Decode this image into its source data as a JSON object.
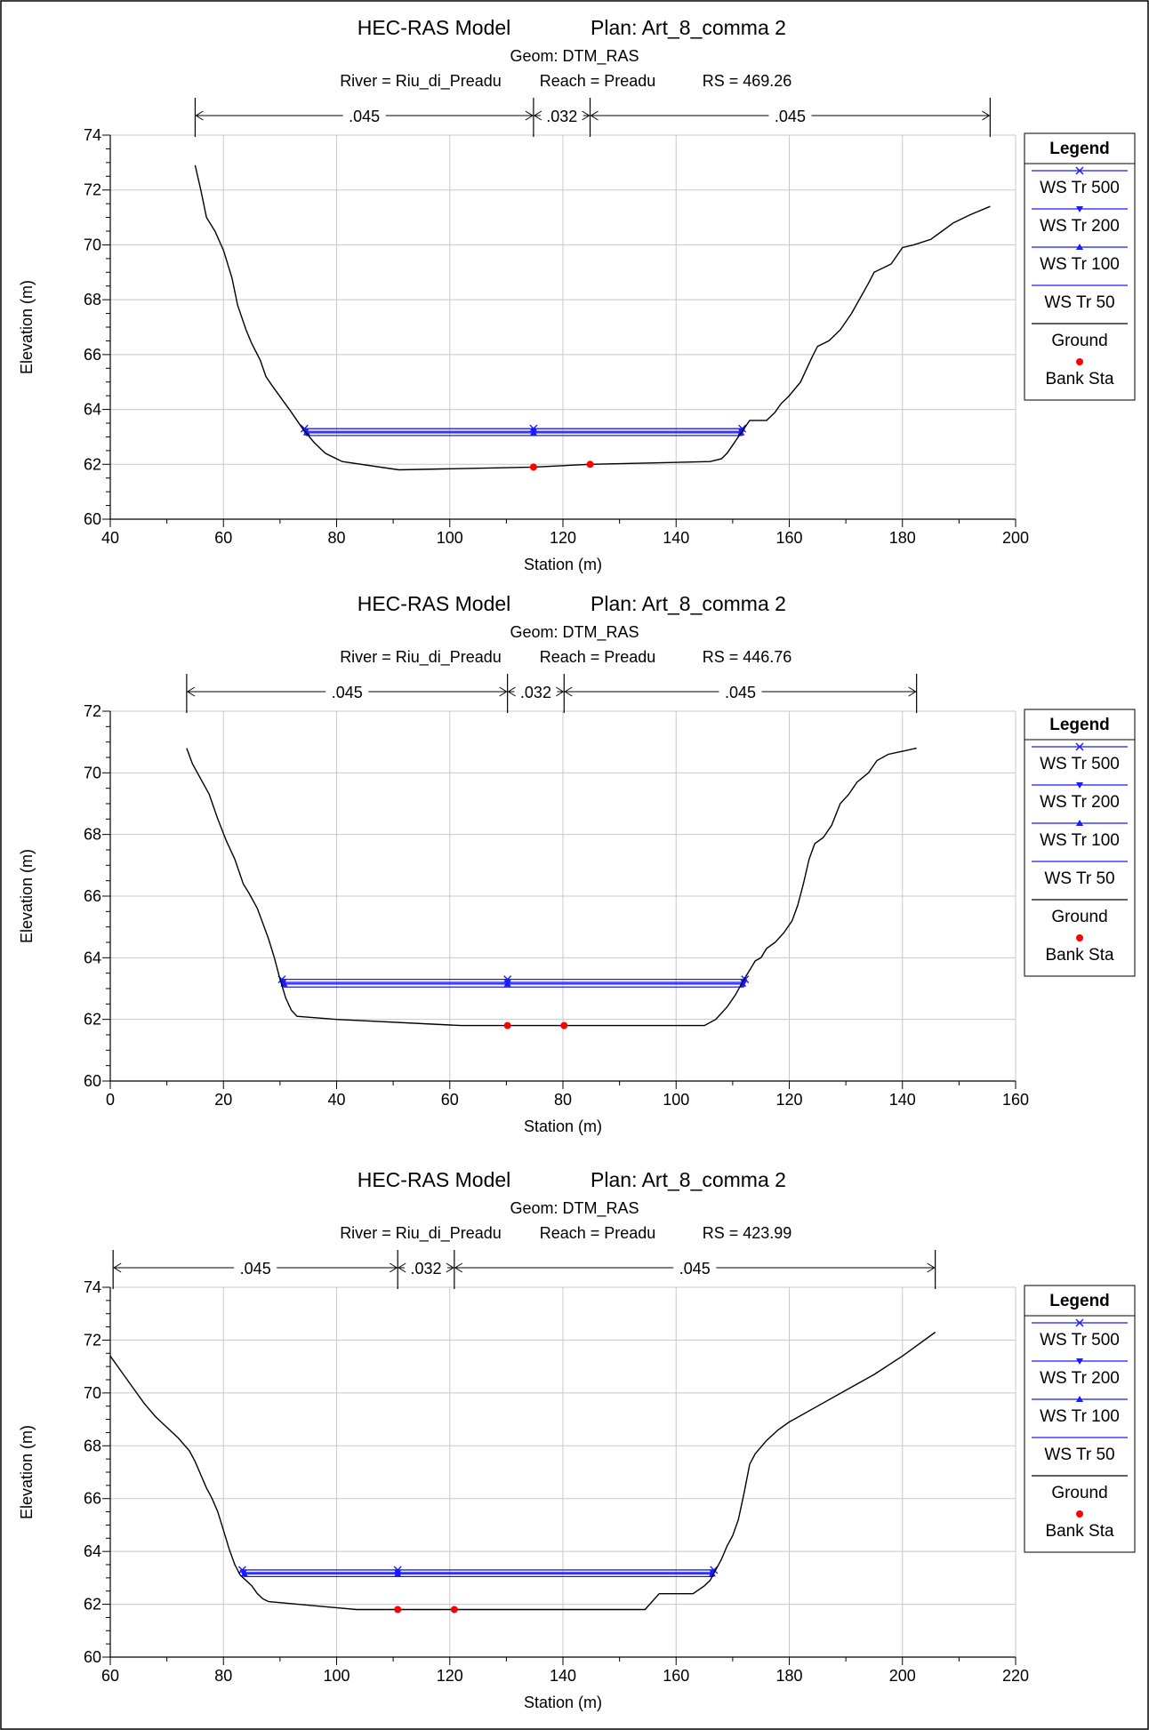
{
  "chart_data": [
    {
      "type": "line",
      "title": "HEC-RAS Model",
      "plan": "Plan: Art_8_comma 2",
      "geom": "Geom: DTM_RAS",
      "river": "River = Riu_di_Preadu",
      "reach": "Reach = Preadu",
      "rs": "RS = 469.26",
      "xlabel": "Station (m)",
      "ylabel": "Elevation (m)",
      "xlim": [
        40,
        200
      ],
      "ylim": [
        60,
        74
      ],
      "xticks": [
        40,
        60,
        80,
        100,
        120,
        140,
        160,
        180,
        200
      ],
      "yticks": [
        60,
        62,
        64,
        66,
        68,
        70,
        72,
        74
      ],
      "grid": true,
      "mannings": [
        {
          "label": ".045",
          "from": 55,
          "to": 114.8
        },
        {
          "label": ".032",
          "from": 114.8,
          "to": 124.8
        },
        {
          "label": ".045",
          "from": 124.8,
          "to": 195.5
        }
      ],
      "ground": [
        [
          55,
          72.9
        ],
        [
          56,
          72
        ],
        [
          57,
          71
        ],
        [
          58.5,
          70.5
        ],
        [
          60,
          69.8
        ],
        [
          61.5,
          68.8
        ],
        [
          62.5,
          67.8
        ],
        [
          64,
          66.9
        ],
        [
          65,
          66.4
        ],
        [
          66.5,
          65.8
        ],
        [
          67.5,
          65.2
        ],
        [
          68.5,
          64.9
        ],
        [
          72,
          63.9
        ],
        [
          74,
          63.3
        ],
        [
          76,
          62.8
        ],
        [
          78,
          62.4
        ],
        [
          81,
          62.1
        ],
        [
          91,
          61.8
        ],
        [
          114.8,
          61.9
        ],
        [
          124.8,
          62
        ],
        [
          146,
          62.1
        ],
        [
          148,
          62.2
        ],
        [
          149,
          62.4
        ],
        [
          150,
          62.7
        ],
        [
          151,
          63
        ],
        [
          152,
          63.3
        ],
        [
          153,
          63.6
        ],
        [
          156,
          63.6
        ],
        [
          157.5,
          63.9
        ],
        [
          158.5,
          64.2
        ],
        [
          160,
          64.5
        ],
        [
          162,
          65
        ],
        [
          164,
          65.9
        ],
        [
          165,
          66.3
        ],
        [
          167,
          66.5
        ],
        [
          169,
          66.9
        ],
        [
          171,
          67.5
        ],
        [
          174,
          68.6
        ],
        [
          175,
          69
        ],
        [
          178,
          69.3
        ],
        [
          180,
          69.9
        ],
        [
          182,
          70
        ],
        [
          185,
          70.2
        ],
        [
          187,
          70.5
        ],
        [
          189,
          70.8
        ],
        [
          192,
          71.1
        ],
        [
          195.5,
          71.4
        ]
      ],
      "water_surfaces": [
        {
          "name": "WS Tr 500",
          "elevation": 63.3,
          "from": 74.0,
          "to": 152.0,
          "marker": "x"
        },
        {
          "name": "WS Tr 200",
          "elevation": 63.2,
          "from": 74.2,
          "to": 151.9,
          "marker": "triangle-down"
        },
        {
          "name": "WS Tr 100",
          "elevation": 63.15,
          "from": 74.4,
          "to": 151.8,
          "marker": "triangle-up"
        },
        {
          "name": "WS Tr 50",
          "elevation": 63.05,
          "from": 74.6,
          "to": 151.7,
          "marker": "none"
        }
      ],
      "bank_sta": [
        [
          114.8,
          61.9
        ],
        [
          124.8,
          62
        ]
      ]
    },
    {
      "type": "line",
      "title": "HEC-RAS Model",
      "plan": "Plan: Art_8_comma 2",
      "geom": "Geom: DTM_RAS",
      "river": "River = Riu_di_Preadu",
      "reach": "Reach = Preadu",
      "rs": "RS = 446.76",
      "xlabel": "Station (m)",
      "ylabel": "Elevation (m)",
      "xlim": [
        0,
        160
      ],
      "ylim": [
        60,
        72
      ],
      "xticks": [
        0,
        20,
        40,
        60,
        80,
        100,
        120,
        140,
        160
      ],
      "yticks": [
        60,
        62,
        64,
        66,
        68,
        70,
        72
      ],
      "grid": true,
      "mannings": [
        {
          "label": ".045",
          "from": 13.5,
          "to": 70.2
        },
        {
          "label": ".032",
          "from": 70.2,
          "to": 80.2
        },
        {
          "label": ".045",
          "from": 80.2,
          "to": 142.5
        }
      ],
      "ground": [
        [
          13.5,
          70.8
        ],
        [
          14.5,
          70.3
        ],
        [
          16,
          69.8
        ],
        [
          17.5,
          69.3
        ],
        [
          19,
          68.5
        ],
        [
          20.5,
          67.8
        ],
        [
          22,
          67.2
        ],
        [
          23.5,
          66.4
        ],
        [
          24.5,
          66.1
        ],
        [
          26,
          65.6
        ],
        [
          27,
          65.1
        ],
        [
          28,
          64.6
        ],
        [
          29,
          64
        ],
        [
          30,
          63.3
        ],
        [
          30.5,
          63
        ],
        [
          31,
          62.7
        ],
        [
          32,
          62.3
        ],
        [
          33,
          62.1
        ],
        [
          40,
          62
        ],
        [
          62,
          61.8
        ],
        [
          70.2,
          61.8
        ],
        [
          80.2,
          61.8
        ],
        [
          105,
          61.8
        ],
        [
          107,
          62
        ],
        [
          109,
          62.4
        ],
        [
          110.5,
          62.8
        ],
        [
          112,
          63.3
        ],
        [
          113,
          63.6
        ],
        [
          114,
          63.9
        ],
        [
          115,
          64
        ],
        [
          116,
          64.3
        ],
        [
          117.5,
          64.5
        ],
        [
          119,
          64.8
        ],
        [
          120.5,
          65.2
        ],
        [
          121.5,
          65.7
        ],
        [
          122.5,
          66.4
        ],
        [
          123.5,
          67.2
        ],
        [
          124.5,
          67.7
        ],
        [
          126,
          67.9
        ],
        [
          127.5,
          68.3
        ],
        [
          129,
          69
        ],
        [
          130.5,
          69.3
        ],
        [
          132,
          69.7
        ],
        [
          134,
          70
        ],
        [
          135.5,
          70.4
        ],
        [
          137.5,
          70.6
        ],
        [
          140,
          70.7
        ],
        [
          142.5,
          70.8
        ]
      ],
      "water_surfaces": [
        {
          "name": "WS Tr 500",
          "elevation": 63.3,
          "from": 30.0,
          "to": 112.5,
          "marker": "x"
        },
        {
          "name": "WS Tr 200",
          "elevation": 63.2,
          "from": 30.2,
          "to": 112.3,
          "marker": "triangle-down"
        },
        {
          "name": "WS Tr 100",
          "elevation": 63.15,
          "from": 30.4,
          "to": 112.1,
          "marker": "triangle-up"
        },
        {
          "name": "WS Tr 50",
          "elevation": 63.05,
          "from": 30.6,
          "to": 112.0,
          "marker": "none"
        }
      ],
      "bank_sta": [
        [
          70.2,
          61.8
        ],
        [
          80.2,
          61.8
        ]
      ]
    },
    {
      "type": "line",
      "title": "HEC-RAS Model",
      "plan": "Plan: Art_8_comma 2",
      "geom": "Geom: DTM_RAS",
      "river": "River = Riu_di_Preadu",
      "reach": "Reach = Preadu",
      "rs": "RS = 423.99",
      "xlabel": "Station (m)",
      "ylabel": "Elevation (m)",
      "xlim": [
        60,
        220
      ],
      "ylim": [
        60,
        74
      ],
      "xticks": [
        60,
        80,
        100,
        120,
        140,
        160,
        180,
        200,
        220
      ],
      "yticks": [
        60,
        62,
        64,
        66,
        68,
        70,
        72,
        74
      ],
      "grid": true,
      "mannings": [
        {
          "label": ".045",
          "from": 60.5,
          "to": 110.8
        },
        {
          "label": ".032",
          "from": 110.8,
          "to": 120.8
        },
        {
          "label": ".045",
          "from": 120.8,
          "to": 205.8
        }
      ],
      "ground": [
        [
          60,
          71.4
        ],
        [
          62,
          70.8
        ],
        [
          64,
          70.2
        ],
        [
          66,
          69.6
        ],
        [
          68,
          69.1
        ],
        [
          70,
          68.7
        ],
        [
          72,
          68.3
        ],
        [
          74,
          67.8
        ],
        [
          75,
          67.4
        ],
        [
          76,
          66.9
        ],
        [
          77,
          66.4
        ],
        [
          78,
          66
        ],
        [
          79,
          65.5
        ],
        [
          80,
          64.8
        ],
        [
          81,
          64.1
        ],
        [
          82,
          63.5
        ],
        [
          83,
          63.1
        ],
        [
          84,
          62.9
        ],
        [
          85,
          62.7
        ],
        [
          86,
          62.4
        ],
        [
          87,
          62.2
        ],
        [
          88,
          62.1
        ],
        [
          103.5,
          61.8
        ],
        [
          110.8,
          61.8
        ],
        [
          120.8,
          61.8
        ],
        [
          154.5,
          61.8
        ],
        [
          157,
          62.4
        ],
        [
          163,
          62.4
        ],
        [
          165,
          62.7
        ],
        [
          166,
          62.9
        ],
        [
          167,
          63.3
        ],
        [
          168,
          63.7
        ],
        [
          169,
          64.2
        ],
        [
          170,
          64.6
        ],
        [
          171,
          65.2
        ],
        [
          172,
          66.2
        ],
        [
          173,
          67.3
        ],
        [
          174,
          67.7
        ],
        [
          176,
          68.2
        ],
        [
          178,
          68.6
        ],
        [
          180,
          68.9
        ],
        [
          185,
          69.5
        ],
        [
          190,
          70.1
        ],
        [
          195,
          70.7
        ],
        [
          200,
          71.4
        ],
        [
          205.8,
          72.3
        ]
      ],
      "water_surfaces": [
        {
          "name": "WS Tr 500",
          "elevation": 63.3,
          "from": 83.0,
          "to": 167.0,
          "marker": "x"
        },
        {
          "name": "WS Tr 200",
          "elevation": 63.2,
          "from": 83.2,
          "to": 166.8,
          "marker": "triangle-down"
        },
        {
          "name": "WS Tr 100",
          "elevation": 63.15,
          "from": 83.4,
          "to": 166.7,
          "marker": "triangle-up"
        },
        {
          "name": "WS Tr 50",
          "elevation": 63.05,
          "from": 83.6,
          "to": 166.6,
          "marker": "none"
        }
      ],
      "bank_sta": [
        [
          110.8,
          61.8
        ],
        [
          120.8,
          61.8
        ]
      ]
    }
  ],
  "legend": {
    "title": "Legend",
    "items": [
      {
        "name": "WS Tr 500",
        "marker": "x"
      },
      {
        "name": "WS Tr 200",
        "marker": "triangle-down"
      },
      {
        "name": "WS Tr 100",
        "marker": "triangle-up"
      },
      {
        "name": "WS Tr 50",
        "marker": "none"
      },
      {
        "name": "Ground",
        "marker": "none"
      },
      {
        "name": "Bank Sta",
        "marker": "dot"
      }
    ]
  },
  "colors": {
    "water": "#1a1aff",
    "ground": "#000000",
    "bank": "#ff0000",
    "grid": "#c8c8c8"
  }
}
